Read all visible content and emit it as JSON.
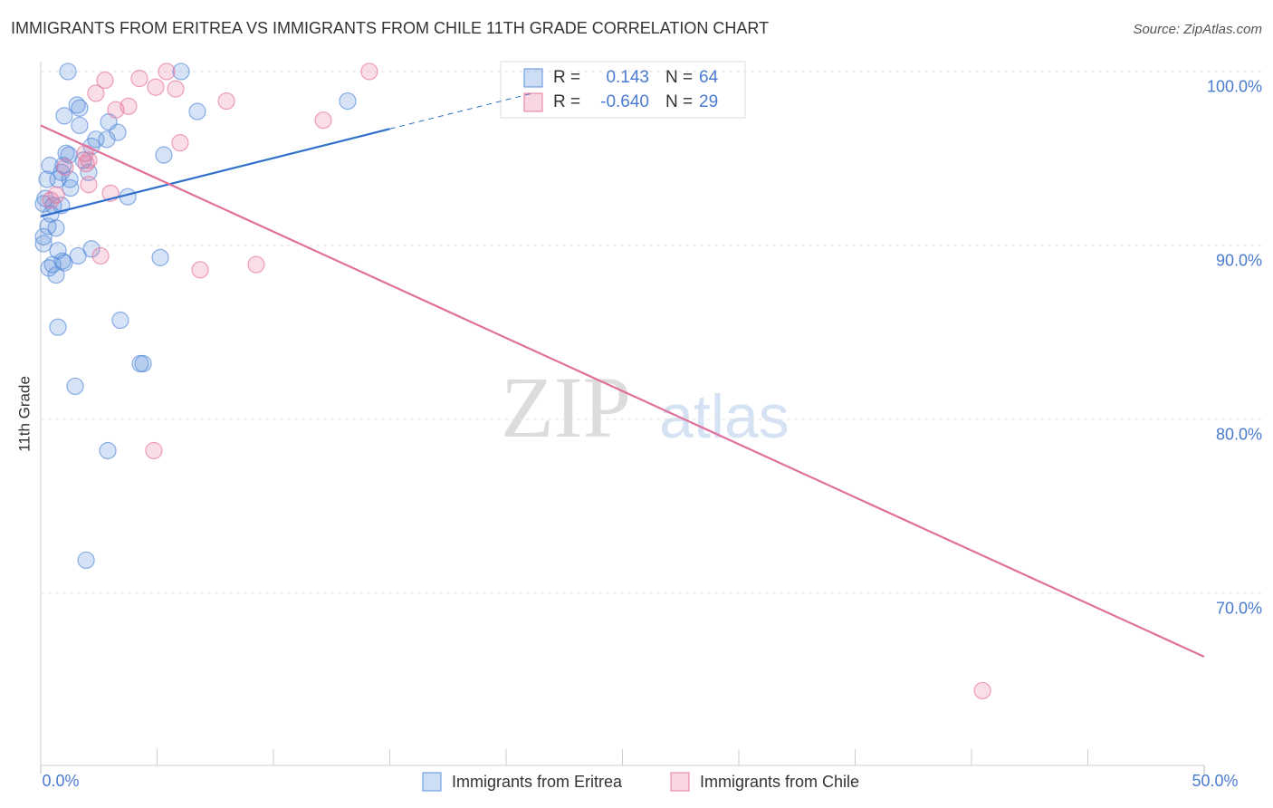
{
  "chart_data": {
    "type": "scatter",
    "title": "IMMIGRANTS FROM ERITREA VS IMMIGRANTS FROM CHILE 11TH GRADE CORRELATION CHART",
    "source": "Source: ZipAtlas.com",
    "y_label": "11th Grade",
    "watermark": [
      "ZIP",
      "atlas"
    ],
    "xlim": [
      0,
      50
    ],
    "ylim": [
      60.1,
      100.57
    ],
    "xticks": [
      {
        "value": 0,
        "label": "0.0%"
      },
      {
        "value": 50,
        "label": "50.0%"
      }
    ],
    "xminor_ticks": [
      5,
      10,
      15,
      20,
      25,
      30,
      35,
      40,
      45
    ],
    "yticks": [
      {
        "value": 70,
        "label": "70.0%"
      },
      {
        "value": 80,
        "label": "80.0%"
      },
      {
        "value": 90,
        "label": "90.0%"
      },
      {
        "value": 100,
        "label": "100.0%"
      }
    ],
    "grid": true,
    "legend_labels": {
      "r": "R =",
      "n": "N ="
    },
    "series": [
      {
        "name": "Immigrants from Eritrea",
        "color": "#5b8fdc",
        "r": {
          "value": 0.143,
          "label": "0.143"
        },
        "n": 64,
        "trend": {
          "x": [
            0,
            15
          ],
          "y": [
            91.67,
            96.7
          ]
        },
        "trend_dashed": {
          "x": [
            15,
            21.2
          ],
          "y": [
            96.7,
            98.77
          ]
        },
        "x": [
          1.17,
          6.03,
          1.56,
          1.67,
          1.01,
          6.73,
          13.19,
          2.92,
          1.67,
          3.31,
          2.37,
          2.84,
          2.18,
          1.09,
          1.21,
          5.29,
          1.83,
          0.39,
          0.97,
          0.89,
          2.06,
          0.74,
          1.25,
          0.27,
          1.28,
          0.19,
          0.12,
          3.74,
          0.89,
          0.54,
          0.43,
          0.31,
          0.66,
          0.12,
          0.12,
          0.74,
          2.18,
          1.6,
          5.14,
          0.51,
          1.01,
          0.35,
          0.66,
          0.93,
          3.42,
          0.74,
          4.28,
          4.4,
          1.48,
          2.88,
          1.95
        ],
        "values": [
          100,
          100,
          98.07,
          97.9,
          97.45,
          97.7,
          98.3,
          97.1,
          96.9,
          96.5,
          96.1,
          96.1,
          95.7,
          95.3,
          95.2,
          95.2,
          94.9,
          94.6,
          94.6,
          94.2,
          94.2,
          93.8,
          93.8,
          93.8,
          93.3,
          92.7,
          92.4,
          92.8,
          92.3,
          92.3,
          91.8,
          91.1,
          91.0,
          90.5,
          90.1,
          89.7,
          89.8,
          89.4,
          89.3,
          88.9,
          89.0,
          88.7,
          88.3,
          89.1,
          85.7,
          85.3,
          83.2,
          83.2,
          81.9,
          78.2,
          71.9
        ]
      },
      {
        "name": "Immigrants from Chile",
        "color": "#e8789f",
        "r": {
          "value": -0.64,
          "label": "-0.640"
        },
        "n": 29,
        "trend": {
          "x": [
            0,
            50
          ],
          "y": [
            96.9,
            66.35
          ]
        },
        "x": [
          14.12,
          5.41,
          4.24,
          2.76,
          4.94,
          5.8,
          2.37,
          7.98,
          3.77,
          3.23,
          12.14,
          5.99,
          1.91,
          2.06,
          1.95,
          2.06,
          3.0,
          0.66,
          0.43,
          2.57,
          6.85,
          9.26,
          4.86,
          40.47,
          1.05
        ],
        "values": [
          100,
          100,
          99.6,
          99.5,
          99.1,
          99.0,
          98.75,
          98.3,
          98.0,
          97.8,
          97.2,
          95.9,
          95.3,
          94.9,
          94.7,
          93.5,
          93.0,
          92.9,
          92.6,
          89.4,
          88.6,
          88.9,
          78.2,
          64.4,
          94.5
        ]
      }
    ]
  }
}
